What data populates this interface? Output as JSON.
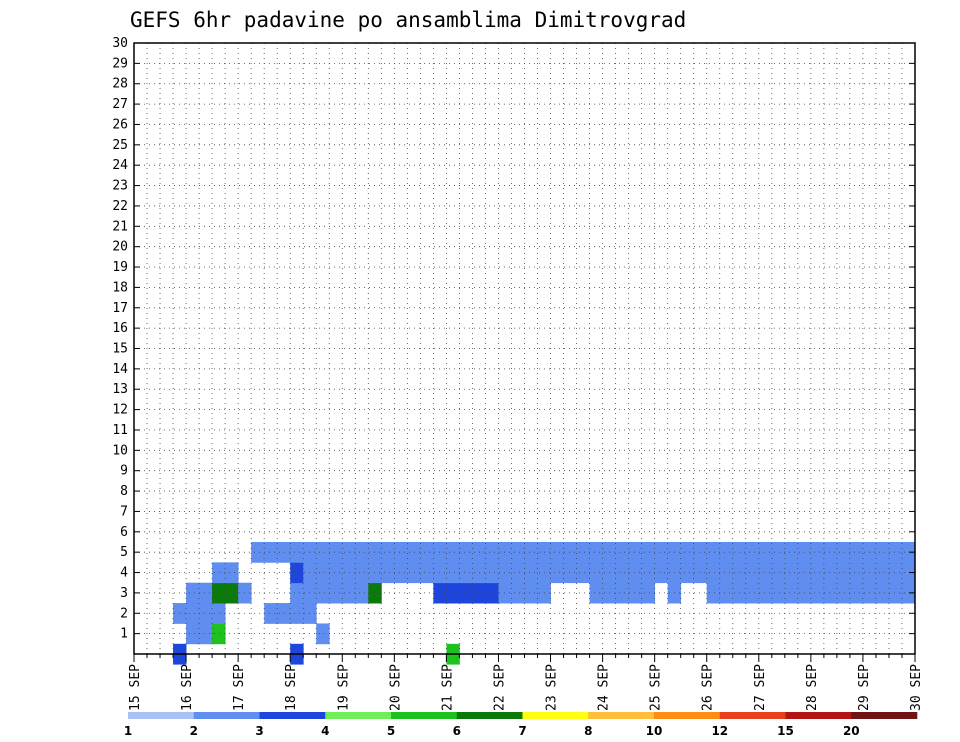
{
  "chart_data": {
    "type": "heatmap",
    "title": "GEFS 6hr padavine po ansamblima Dimitrovgrad",
    "xlabel": "",
    "ylabel": "",
    "x_ticks": [
      "15 SEP",
      "16 SEP",
      "17 SEP",
      "18 SEP",
      "19 SEP",
      "20 SEP",
      "21 SEP",
      "22 SEP",
      "23 SEP",
      "24 SEP",
      "25 SEP",
      "26 SEP",
      "27 SEP",
      "28 SEP",
      "29 SEP",
      "30 SEP"
    ],
    "y_ticks": [
      1,
      2,
      3,
      4,
      5,
      6,
      7,
      8,
      9,
      10,
      11,
      12,
      13,
      14,
      15,
      16,
      17,
      18,
      19,
      20,
      21,
      22,
      23,
      24,
      25,
      26,
      27,
      28,
      29,
      30
    ],
    "xlim": [
      0,
      60
    ],
    "ylim": [
      0,
      30
    ],
    "grid": true,
    "legend": {
      "placement": "bottom",
      "thresholds": [
        "1",
        "2",
        "3",
        "4",
        "5",
        "6",
        "7",
        "8",
        "10",
        "12",
        "15",
        "20"
      ],
      "colors": [
        "#a9c1f5",
        "#5f8ef0",
        "#1e46dc",
        "#6fee5a",
        "#1ec21e",
        "#0b7a0b",
        "#ffff14",
        "#ffbe3c",
        "#ff8c14",
        "#e8401e",
        "#b41414",
        "#6e1414"
      ]
    },
    "cells": [
      [
        3,
        0,
        2
      ],
      [
        12,
        0,
        2
      ],
      [
        24,
        0,
        4
      ],
      [
        4,
        1,
        1
      ],
      [
        5,
        1,
        1
      ],
      [
        6,
        1,
        4
      ],
      [
        14,
        1,
        1
      ],
      [
        3,
        2,
        1
      ],
      [
        4,
        2,
        1
      ],
      [
        5,
        2,
        1
      ],
      [
        6,
        2,
        1
      ],
      [
        10,
        2,
        1
      ],
      [
        11,
        2,
        1
      ],
      [
        12,
        2,
        1
      ],
      [
        13,
        2,
        1
      ],
      [
        4,
        3,
        1
      ],
      [
        5,
        3,
        1
      ],
      [
        6,
        3,
        5
      ],
      [
        7,
        3,
        5
      ],
      [
        8,
        3,
        1
      ],
      [
        12,
        3,
        1
      ],
      [
        13,
        3,
        1
      ],
      [
        14,
        3,
        1
      ],
      [
        15,
        3,
        1
      ],
      [
        16,
        3,
        1
      ],
      [
        17,
        3,
        1
      ],
      [
        18,
        3,
        5
      ],
      [
        23,
        3,
        2
      ],
      [
        24,
        3,
        2
      ],
      [
        25,
        3,
        2
      ],
      [
        26,
        3,
        2
      ],
      [
        27,
        3,
        2
      ],
      [
        28,
        3,
        1
      ],
      [
        29,
        3,
        1
      ],
      [
        30,
        3,
        1
      ],
      [
        31,
        3,
        1
      ],
      [
        35,
        3,
        1
      ],
      [
        36,
        3,
        1
      ],
      [
        37,
        3,
        1
      ],
      [
        38,
        3,
        1
      ],
      [
        39,
        3,
        1
      ],
      [
        41,
        3,
        1
      ],
      [
        44,
        3,
        1
      ],
      [
        45,
        3,
        1
      ],
      [
        46,
        3,
        1
      ],
      [
        47,
        3,
        1
      ],
      [
        48,
        3,
        1
      ],
      [
        49,
        3,
        1
      ],
      [
        50,
        3,
        1
      ],
      [
        51,
        3,
        1
      ],
      [
        52,
        3,
        1
      ],
      [
        53,
        3,
        1
      ],
      [
        54,
        3,
        1
      ],
      [
        55,
        3,
        1
      ],
      [
        56,
        3,
        1
      ],
      [
        57,
        3,
        1
      ],
      [
        58,
        3,
        1
      ],
      [
        59,
        3,
        1
      ],
      [
        6,
        4,
        1
      ],
      [
        7,
        4,
        1
      ],
      [
        12,
        4,
        2
      ],
      [
        13,
        4,
        1
      ],
      [
        14,
        4,
        1
      ],
      [
        15,
        4,
        1
      ],
      [
        16,
        4,
        1
      ],
      [
        17,
        4,
        1
      ],
      [
        18,
        4,
        1
      ],
      [
        19,
        4,
        1
      ],
      [
        20,
        4,
        1
      ],
      [
        21,
        4,
        1
      ],
      [
        22,
        4,
        1
      ],
      [
        23,
        4,
        1
      ],
      [
        24,
        4,
        1
      ],
      [
        25,
        4,
        1
      ],
      [
        26,
        4,
        1
      ],
      [
        27,
        4,
        1
      ],
      [
        28,
        4,
        1
      ],
      [
        29,
        4,
        1
      ],
      [
        30,
        4,
        1
      ],
      [
        31,
        4,
        1
      ],
      [
        32,
        4,
        1
      ],
      [
        33,
        4,
        1
      ],
      [
        34,
        4,
        1
      ],
      [
        35,
        4,
        1
      ],
      [
        36,
        4,
        1
      ],
      [
        37,
        4,
        1
      ],
      [
        38,
        4,
        1
      ],
      [
        39,
        4,
        1
      ],
      [
        40,
        4,
        1
      ],
      [
        41,
        4,
        1
      ],
      [
        42,
        4,
        1
      ],
      [
        43,
        4,
        1
      ],
      [
        44,
        4,
        1
      ],
      [
        45,
        4,
        1
      ],
      [
        46,
        4,
        1
      ],
      [
        47,
        4,
        1
      ],
      [
        48,
        4,
        1
      ],
      [
        49,
        4,
        1
      ],
      [
        50,
        4,
        1
      ],
      [
        51,
        4,
        1
      ],
      [
        52,
        4,
        1
      ],
      [
        53,
        4,
        1
      ],
      [
        54,
        4,
        1
      ],
      [
        55,
        4,
        1
      ],
      [
        56,
        4,
        1
      ],
      [
        57,
        4,
        1
      ],
      [
        58,
        4,
        1
      ],
      [
        59,
        4,
        1
      ],
      [
        9,
        5,
        1
      ],
      [
        10,
        5,
        1
      ],
      [
        11,
        5,
        1
      ],
      [
        12,
        5,
        1
      ],
      [
        13,
        5,
        1
      ],
      [
        14,
        5,
        1
      ],
      [
        15,
        5,
        1
      ],
      [
        16,
        5,
        1
      ],
      [
        17,
        5,
        1
      ],
      [
        18,
        5,
        1
      ],
      [
        19,
        5,
        1
      ],
      [
        20,
        5,
        1
      ],
      [
        21,
        5,
        1
      ],
      [
        22,
        5,
        1
      ],
      [
        23,
        5,
        1
      ],
      [
        24,
        5,
        1
      ],
      [
        25,
        5,
        1
      ],
      [
        26,
        5,
        1
      ],
      [
        27,
        5,
        1
      ],
      [
        28,
        5,
        1
      ],
      [
        29,
        5,
        1
      ],
      [
        30,
        5,
        1
      ],
      [
        31,
        5,
        1
      ],
      [
        32,
        5,
        1
      ],
      [
        33,
        5,
        1
      ],
      [
        34,
        5,
        1
      ],
      [
        35,
        5,
        1
      ],
      [
        36,
        5,
        1
      ],
      [
        37,
        5,
        1
      ],
      [
        38,
        5,
        1
      ],
      [
        39,
        5,
        1
      ],
      [
        40,
        5,
        1
      ],
      [
        41,
        5,
        1
      ],
      [
        42,
        5,
        1
      ],
      [
        43,
        5,
        1
      ],
      [
        44,
        5,
        1
      ],
      [
        45,
        5,
        1
      ],
      [
        46,
        5,
        1
      ],
      [
        47,
        5,
        1
      ],
      [
        48,
        5,
        1
      ],
      [
        49,
        5,
        1
      ],
      [
        50,
        5,
        1
      ],
      [
        51,
        5,
        1
      ],
      [
        52,
        5,
        1
      ],
      [
        53,
        5,
        1
      ],
      [
        54,
        5,
        1
      ],
      [
        55,
        5,
        1
      ],
      [
        56,
        5,
        1
      ],
      [
        57,
        5,
        1
      ],
      [
        58,
        5,
        1
      ],
      [
        59,
        5,
        1
      ]
    ],
    "cells_note_removed": true
  }
}
